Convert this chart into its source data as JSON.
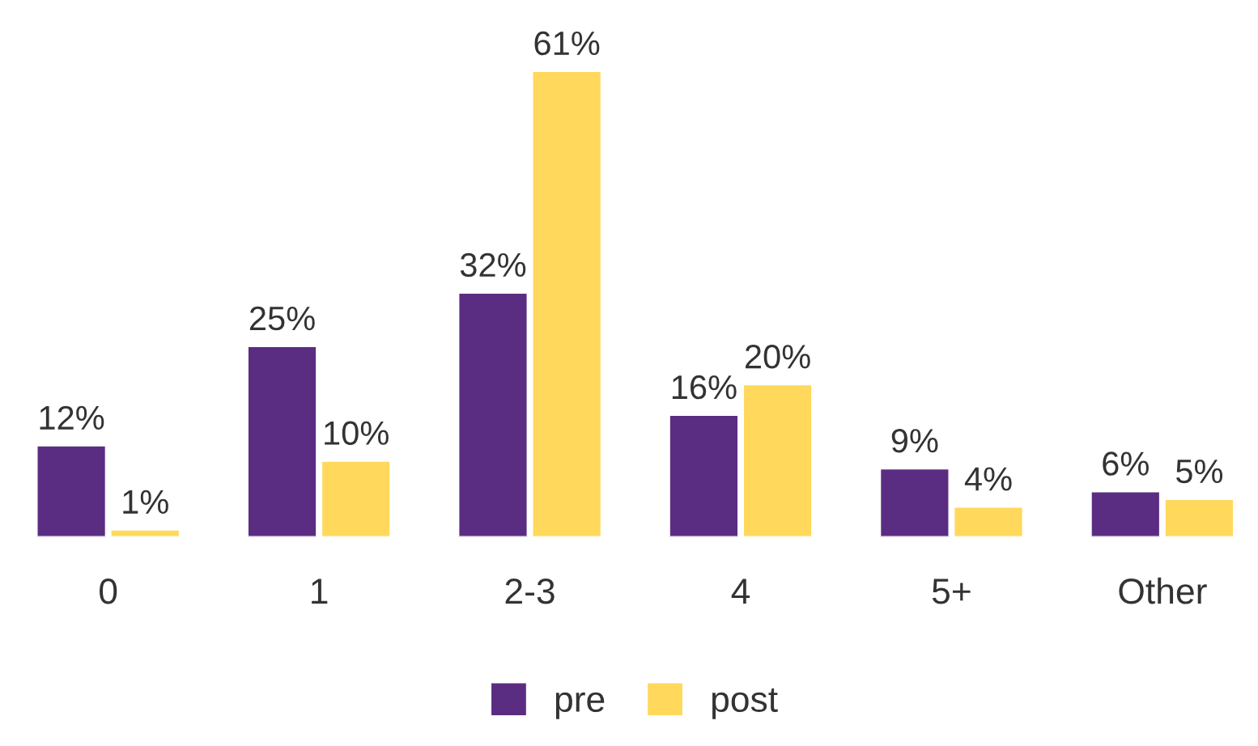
{
  "chart_data": {
    "type": "bar",
    "categories": [
      "0",
      "1",
      "2-3",
      "4",
      "5+",
      "Other"
    ],
    "series": [
      {
        "name": "pre",
        "color": "#5a2d82",
        "values": [
          12,
          25,
          32,
          16,
          9,
          6
        ],
        "value_labels": [
          "12%",
          "25%",
          "32%",
          "16%",
          "9%",
          "6%"
        ]
      },
      {
        "name": "post",
        "color": "#ffd85c",
        "values": [
          1,
          10,
          61,
          20,
          4,
          5
        ],
        "value_labels": [
          "1%",
          "10%",
          "61%",
          "20%",
          "4%",
          "5%"
        ]
      }
    ],
    "legend": "bottom",
    "grid": false
  }
}
